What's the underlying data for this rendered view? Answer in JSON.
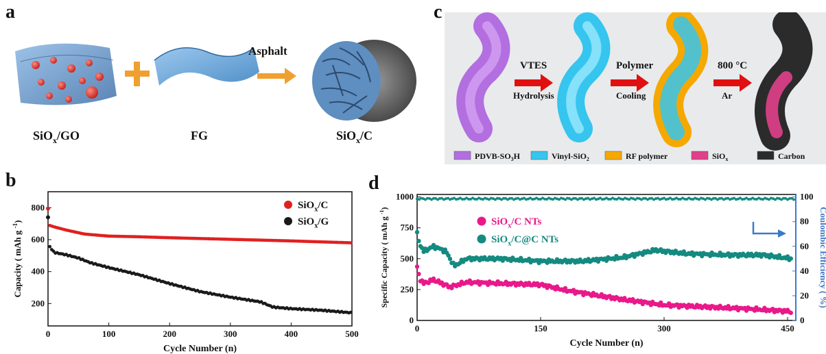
{
  "panels": {
    "a": {
      "letter": "a",
      "step_label": "Asphalt",
      "item1": {
        "main": "SiO",
        "sub": "x",
        "rest": "/GO"
      },
      "item2": "FG",
      "item3": {
        "main": "SiO",
        "sub": "x",
        "rest": "/C"
      },
      "colors": {
        "plus": "#f0a030",
        "arrow": "#f0a030",
        "sheet": "#6aa3d6",
        "particles": "#e04040"
      }
    },
    "c": {
      "letter": "c",
      "steps": [
        {
          "top": "VTES",
          "bottom": "Hydrolysis"
        },
        {
          "top": "Polymer",
          "bottom": "Cooling"
        },
        {
          "top": "800 °C",
          "bottom": "Ar"
        }
      ],
      "legend": [
        {
          "label_main": "PDVB-SO",
          "label_sub": "3",
          "label_rest": "H",
          "color": "#b36ee0"
        },
        {
          "label_main": "Vinyl-SiO",
          "label_sub": "2",
          "label_rest": "",
          "color": "#36c5ee"
        },
        {
          "label_main": "RF polymer",
          "label_sub": "",
          "label_rest": "",
          "color": "#f5a800"
        },
        {
          "label_main": "SiO",
          "label_sub": "x",
          "label_rest": "",
          "color": "#e0408a"
        },
        {
          "label_main": "Carbon",
          "label_sub": "",
          "label_rest": "",
          "color": "#2b2b2b"
        }
      ]
    }
  },
  "chart_data": [
    {
      "letter": "b",
      "type": "line",
      "xlabel": "Cycle Number (n)",
      "ylabel_main": "Capacity",
      "ylabel_unit": "( mAh g",
      "ylabel_sup": "-1",
      "ylabel_close": ")",
      "xlim": [
        0,
        500
      ],
      "ylim": [
        60,
        900
      ],
      "xticks": [
        0,
        100,
        200,
        300,
        400,
        500
      ],
      "yticks": [
        200,
        400,
        600,
        800
      ],
      "legend_position": "top-right",
      "series": [
        {
          "name_main": "SiO",
          "name_sub": "x",
          "name_rest": "/C",
          "color": "#e02020",
          "x": [
            0,
            2,
            10,
            30,
            60,
            100,
            150,
            200,
            300,
            400,
            500
          ],
          "y": [
            795,
            690,
            680,
            660,
            635,
            622,
            618,
            612,
            602,
            592,
            580
          ]
        },
        {
          "name_main": "SiO",
          "name_sub": "x",
          "name_rest": "/G",
          "color": "#1a1a1a",
          "x": [
            0,
            2,
            10,
            30,
            50,
            70,
            100,
            150,
            200,
            250,
            300,
            350,
            370,
            400,
            450,
            500
          ],
          "y": [
            740,
            560,
            520,
            505,
            485,
            455,
            425,
            380,
            325,
            275,
            240,
            210,
            178,
            168,
            158,
            142
          ]
        }
      ]
    },
    {
      "letter": "d",
      "type": "scatter",
      "xlabel": "Cycle Number (n)",
      "ylabel_main": "Specific Capacity",
      "ylabel_unit": "( mAh g",
      "ylabel_sup": "-1",
      "ylabel_close": ")",
      "y2label": "Coulombic Efficiency ( %)",
      "xlim": [
        0,
        460
      ],
      "ylim": [
        0,
        1020
      ],
      "y2lim": [
        0,
        102
      ],
      "xticks": [
        0,
        150,
        300,
        450
      ],
      "yticks": [
        0,
        250,
        500,
        750,
        1000
      ],
      "y2ticks": [
        0,
        20,
        40,
        60,
        80,
        100
      ],
      "series": [
        {
          "name_main": "SiO",
          "name_sub": "x",
          "name_rest": "/C NTs",
          "color": "#e8198a",
          "x": [
            0,
            3,
            8,
            20,
            40,
            60,
            100,
            150,
            180,
            250,
            300,
            350,
            400,
            450,
            455
          ],
          "y": [
            430,
            340,
            300,
            330,
            270,
            310,
            300,
            290,
            245,
            170,
            125,
            110,
            95,
            75,
            70
          ]
        },
        {
          "name_main": "SiO",
          "name_sub": "x",
          "name_rest": "/C@C NTs",
          "color": "#148a80",
          "x": [
            0,
            3,
            8,
            20,
            35,
            45,
            60,
            100,
            150,
            200,
            250,
            290,
            300,
            330,
            380,
            420,
            455
          ],
          "y": [
            700,
            620,
            560,
            600,
            560,
            440,
            500,
            500,
            480,
            480,
            510,
            570,
            560,
            540,
            530,
            530,
            500
          ]
        },
        {
          "name": "",
          "axis": "y2",
          "color": "#148a80",
          "x": [
            0,
            460
          ],
          "y": [
            98.5,
            98.5
          ]
        }
      ]
    }
  ]
}
